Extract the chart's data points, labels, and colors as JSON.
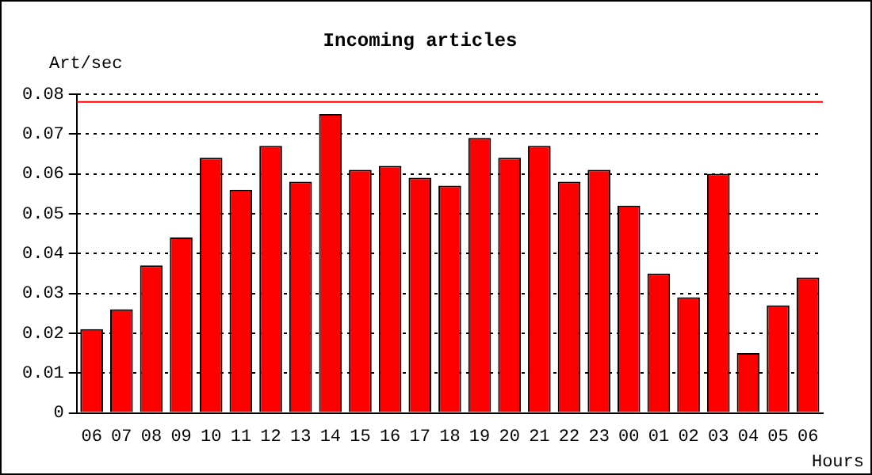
{
  "chart_data": {
    "type": "bar",
    "title": "Incoming articles",
    "ylabel": "Art/sec",
    "xlabel": "Hours",
    "categories": [
      "06",
      "07",
      "08",
      "09",
      "10",
      "11",
      "12",
      "13",
      "14",
      "15",
      "16",
      "17",
      "18",
      "19",
      "20",
      "21",
      "22",
      "23",
      "00",
      "01",
      "02",
      "03",
      "04",
      "05",
      "06"
    ],
    "values": [
      0.021,
      0.026,
      0.037,
      0.044,
      0.064,
      0.056,
      0.067,
      0.058,
      0.075,
      0.061,
      0.062,
      0.059,
      0.057,
      0.069,
      0.064,
      0.067,
      0.058,
      0.061,
      0.052,
      0.035,
      0.029,
      0.06,
      0.015,
      0.027,
      0.034
    ],
    "color": "#ff0000",
    "ylim": [
      0,
      0.08
    ],
    "yticks": [
      0,
      0.01,
      0.02,
      0.03,
      0.04,
      0.05,
      0.06,
      0.07,
      0.08
    ],
    "grid": "y",
    "line_style": "dotted",
    "ref_lines": [
      {
        "axis": "y",
        "value": 0.078,
        "color": "#ff0000"
      }
    ]
  }
}
